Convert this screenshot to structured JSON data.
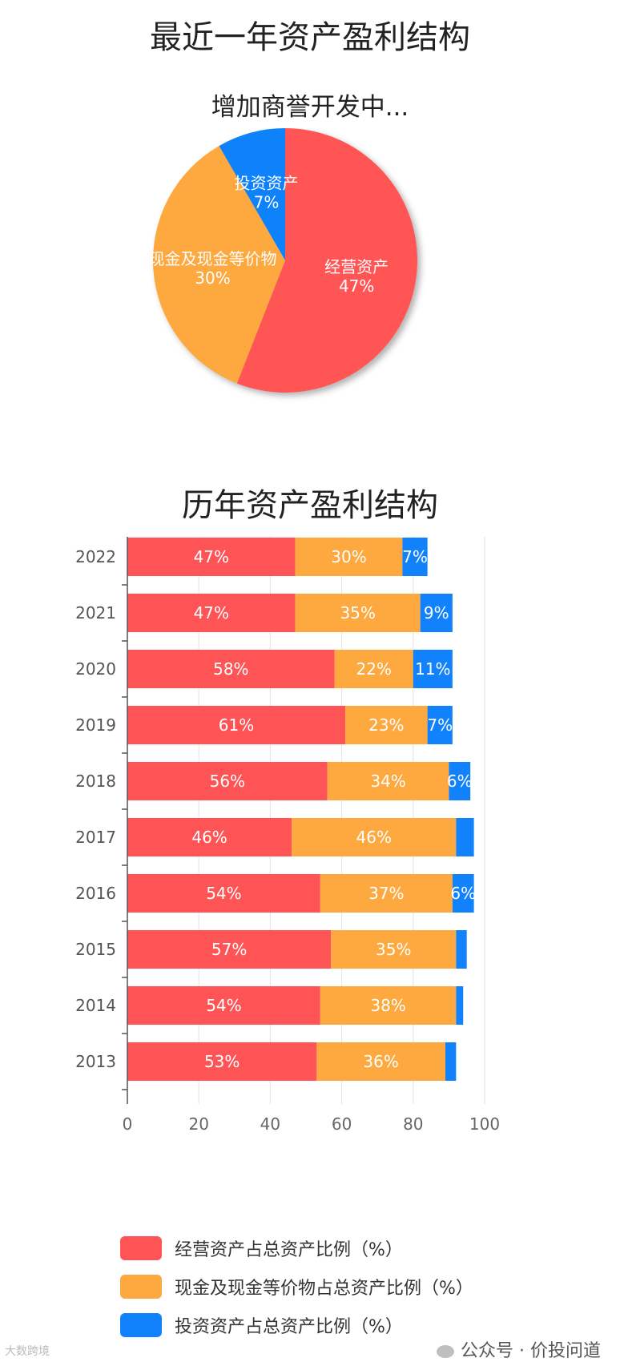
{
  "chart_data": [
    {
      "type": "pie",
      "title": "最近一年资产盈利结构",
      "subtitle": "增加商誉开发中...",
      "slices": [
        {
          "label": "经营资产",
          "value": 47,
          "value_label": "47%",
          "color": "#FF5455"
        },
        {
          "label": "现金及现金等价物",
          "value": 30,
          "value_label": "30%",
          "color": "#FDA940"
        },
        {
          "label": "投资资产",
          "value": 7,
          "value_label": "7%",
          "color": "#1182FB"
        }
      ]
    },
    {
      "type": "bar",
      "orientation": "horizontal",
      "stacked": true,
      "title": "历年资产盈利结构",
      "categories": [
        "2022",
        "2021",
        "2020",
        "2019",
        "2018",
        "2017",
        "2016",
        "2015",
        "2014",
        "2013"
      ],
      "xlim": [
        0,
        100
      ],
      "xticks": [
        "0",
        "20",
        "40",
        "60",
        "80",
        "100"
      ],
      "grid": true,
      "legend_position": "bottom",
      "series": [
        {
          "name": "经营资产占总资产比例（%）",
          "color": "#FF5455",
          "values": [
            47,
            47,
            58,
            61,
            56,
            46,
            54,
            57,
            54,
            53
          ],
          "labels": [
            "47%",
            "47%",
            "58%",
            "61%",
            "56%",
            "46%",
            "54%",
            "57%",
            "54%",
            "53%"
          ]
        },
        {
          "name": "现金及现金等价物占总资产比例（%）",
          "color": "#FDA940",
          "values": [
            30,
            35,
            22,
            23,
            34,
            46,
            37,
            35,
            38,
            36
          ],
          "labels": [
            "30%",
            "35%",
            "22%",
            "23%",
            "34%",
            "46%",
            "37%",
            "35%",
            "38%",
            "36%"
          ]
        },
        {
          "name": "投资资产占总资产比例（%）",
          "color": "#1182FB",
          "values": [
            7,
            9,
            11,
            7,
            6,
            5,
            6,
            3,
            2,
            3
          ],
          "labels": [
            "7%",
            "9%",
            "11%",
            "7%",
            "6%",
            "",
            "6%",
            "",
            "",
            ""
          ]
        }
      ]
    }
  ],
  "watermark": {
    "left": "大数跨境",
    "right": "公众号 · 价投问道"
  }
}
